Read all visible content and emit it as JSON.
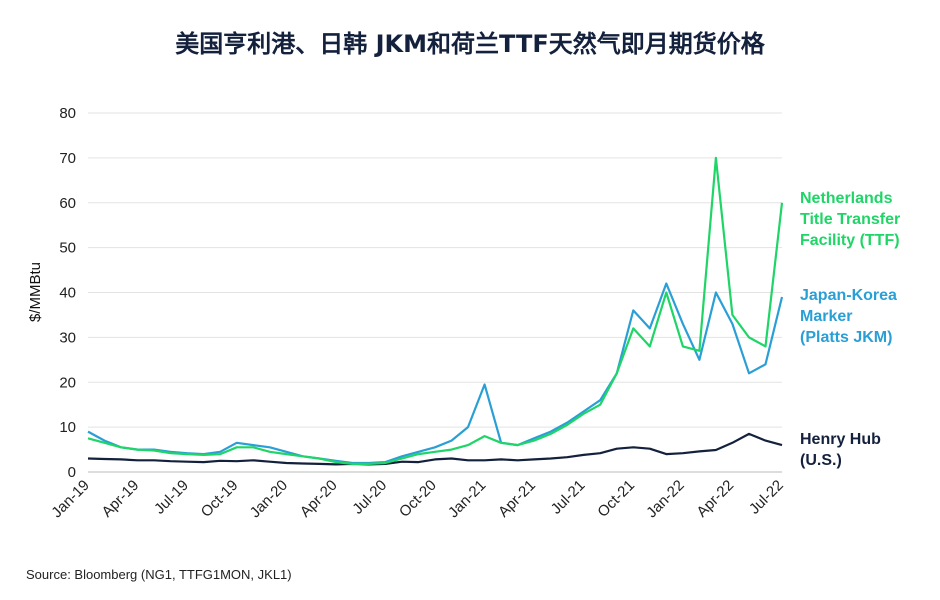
{
  "chart_data": {
    "type": "line",
    "title": "美国亨利港、日韩 JKM和荷兰TTF天然气即月期货价格",
    "ylabel": "$/MMBtu",
    "xlabel": "",
    "ylim": [
      0,
      80
    ],
    "yticks": [
      0,
      10,
      20,
      30,
      40,
      50,
      60,
      70,
      80
    ],
    "grid": true,
    "legend_placement": "right (direct labels)",
    "xticks": [
      "Jan-19",
      "Apr-19",
      "Jul-19",
      "Oct-19",
      "Jan-20",
      "Apr-20",
      "Jul-20",
      "Oct-20",
      "Jan-21",
      "Apr-21",
      "Jul-21",
      "Oct-21",
      "Jan-22",
      "Apr-22",
      "Jul-22"
    ],
    "x_dates": [
      "2019-01",
      "2019-02",
      "2019-03",
      "2019-04",
      "2019-05",
      "2019-06",
      "2019-07",
      "2019-08",
      "2019-09",
      "2019-10",
      "2019-11",
      "2019-12",
      "2020-01",
      "2020-02",
      "2020-03",
      "2020-04",
      "2020-05",
      "2020-06",
      "2020-07",
      "2020-08",
      "2020-09",
      "2020-10",
      "2020-11",
      "2020-12",
      "2021-01",
      "2021-02",
      "2021-03",
      "2021-04",
      "2021-05",
      "2021-06",
      "2021-07",
      "2021-08",
      "2021-09",
      "2021-10",
      "2021-11",
      "2021-12",
      "2022-01",
      "2022-02",
      "2022-03",
      "2022-04",
      "2022-05",
      "2022-06",
      "2022-07"
    ],
    "series": [
      {
        "name": "Netherlands Title Transfer Facility (TTF)",
        "color": "#1fd567",
        "values": [
          7.5,
          6.5,
          5.5,
          5.0,
          4.8,
          4.2,
          4.0,
          3.8,
          4.0,
          5.5,
          5.5,
          4.5,
          4.0,
          3.5,
          3.0,
          2.2,
          1.8,
          1.8,
          2.0,
          3.0,
          4.0,
          4.5,
          5.0,
          6.0,
          8.0,
          6.5,
          6.0,
          7.0,
          8.5,
          10.5,
          13.0,
          15.0,
          22.0,
          32.0,
          28.0,
          40.0,
          28.0,
          27.0,
          70.0,
          35.0,
          30.0,
          28.0,
          60.0
        ]
      },
      {
        "name": "Japan-Korea Marker (Platts JKM)",
        "color": "#2a9fd6",
        "values": [
          9.0,
          7.0,
          5.5,
          5.0,
          5.0,
          4.5,
          4.2,
          4.0,
          4.5,
          6.5,
          6.0,
          5.5,
          4.5,
          3.5,
          3.0,
          2.5,
          2.0,
          2.0,
          2.2,
          3.5,
          4.5,
          5.5,
          7.0,
          10.0,
          19.5,
          6.5,
          6.0,
          7.5,
          9.0,
          11.0,
          13.5,
          16.0,
          22.0,
          36.0,
          32.0,
          42.0,
          33.0,
          25.0,
          40.0,
          33.0,
          22.0,
          24.0,
          39.0
        ]
      },
      {
        "name": "Henry Hub (U.S.)",
        "color": "#14213d",
        "values": [
          3.0,
          2.9,
          2.8,
          2.6,
          2.6,
          2.4,
          2.3,
          2.2,
          2.5,
          2.4,
          2.6,
          2.3,
          2.0,
          1.9,
          1.8,
          1.7,
          1.8,
          1.7,
          1.8,
          2.3,
          2.2,
          2.8,
          3.0,
          2.6,
          2.6,
          2.8,
          2.6,
          2.8,
          3.0,
          3.3,
          3.8,
          4.2,
          5.2,
          5.5,
          5.2,
          4.0,
          4.2,
          4.6,
          4.9,
          6.5,
          8.5,
          7.0,
          6.0
        ]
      }
    ],
    "labels": {
      "ttf": [
        "Netherlands",
        "Title Transfer",
        "Facility (TTF)"
      ],
      "jkm": [
        "Japan-Korea",
        "Marker",
        "(Platts JKM)"
      ],
      "hh": [
        "Henry Hub",
        "(U.S.)"
      ]
    }
  },
  "source": "Source: Bloomberg (NG1, TTFG1MON, JKL1)"
}
